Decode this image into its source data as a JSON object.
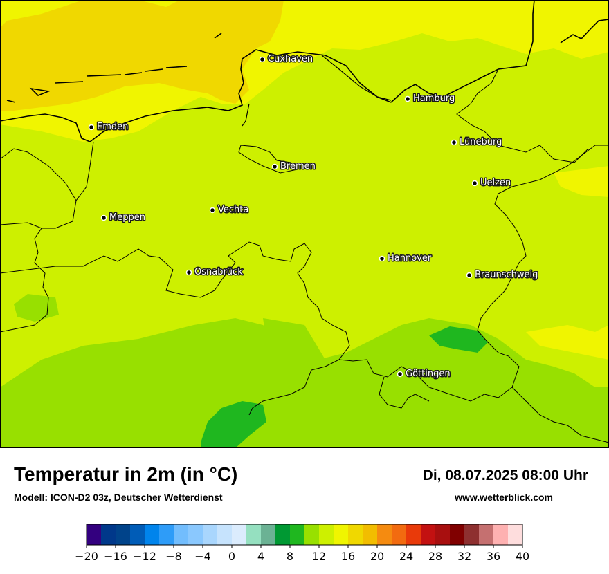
{
  "map": {
    "land_color": "#cdf000",
    "cities": [
      {
        "name": "Cuxhaven",
        "label": "Cuxhaven"
      },
      {
        "name": "Hamburg",
        "label": "Hamburg"
      },
      {
        "name": "Emden",
        "label": "Emden"
      },
      {
        "name": "Lüneburg",
        "label": "Lüneburg"
      },
      {
        "name": "Bremen",
        "label": "Bremen"
      },
      {
        "name": "Uelzen",
        "label": "Uelzen"
      },
      {
        "name": "Vechta",
        "label": "Vechta"
      },
      {
        "name": "Meppen",
        "label": "Meppen"
      },
      {
        "name": "Hannover",
        "label": "Hannover"
      },
      {
        "name": "Osnabrück",
        "label": "Osnabrück"
      },
      {
        "name": "Braunschweig",
        "label": "Braunschweig"
      },
      {
        "name": "Göttingen",
        "label": "Göttingen"
      }
    ]
  },
  "footer": {
    "title": "Temperatur in 2m (in °C)",
    "subtitle": "Modell: ICON-D2 03z, Deutscher Wetterdienst",
    "datetime": "Di, 08.07.2025 08:00 Uhr",
    "website": "www.wetterblick.com"
  },
  "legend": {
    "colors": [
      "#33007f",
      "#00388a",
      "#00438a",
      "#005cb7",
      "#0084ec",
      "#2e9cf8",
      "#72bdfd",
      "#8ac8fe",
      "#a9d6fd",
      "#c6e3fd",
      "#dbecfd",
      "#95e0c0",
      "#6bb294",
      "#009933",
      "#1fb71f",
      "#98e000",
      "#cdf000",
      "#f0f500",
      "#f0d800",
      "#f2bd00",
      "#f58b10",
      "#f26b10",
      "#e93a0a",
      "#c31111",
      "#a80f0f",
      "#800000",
      "#8e3030",
      "#c57070",
      "#feb1b1",
      "#fedddd"
    ],
    "ticks": [
      "−20",
      "−16",
      "−12",
      "−8",
      "−4",
      "0",
      "4",
      "8",
      "12",
      "16",
      "20",
      "24",
      "28",
      "32",
      "36",
      "40"
    ]
  }
}
